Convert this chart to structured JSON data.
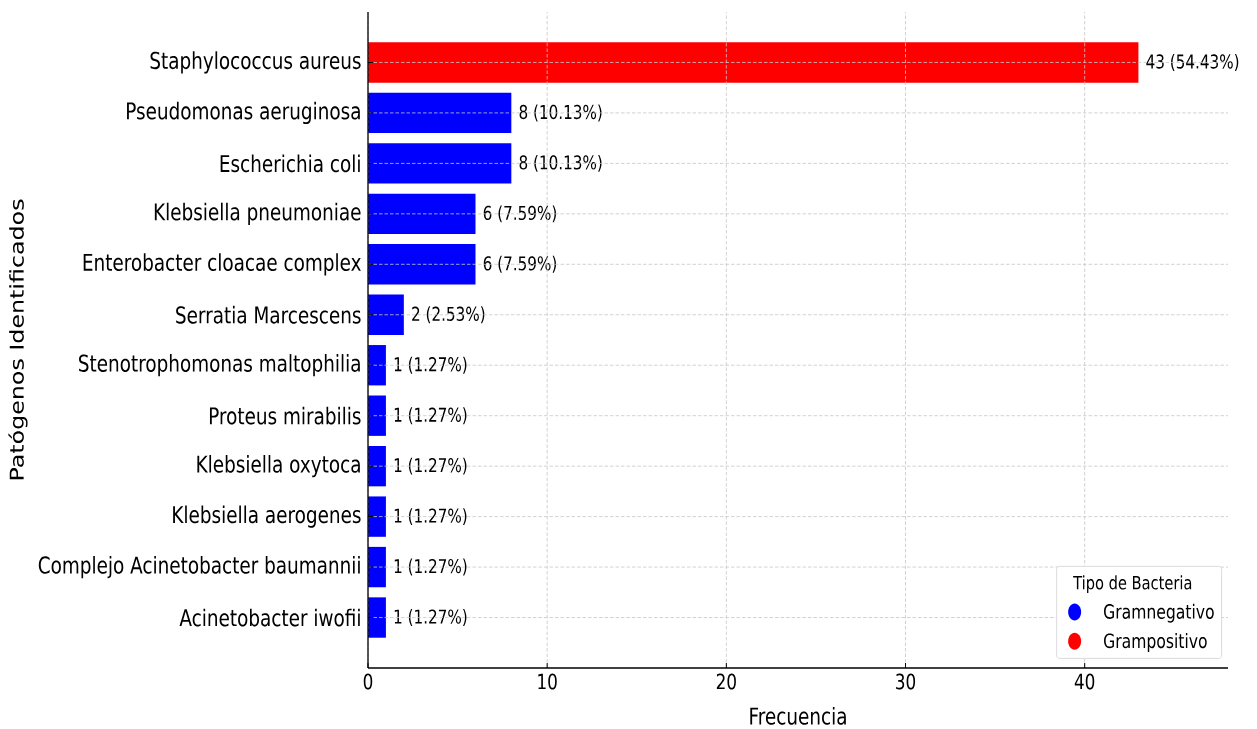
{
  "chart_data": {
    "type": "bar",
    "orientation": "horizontal",
    "xlabel": "Frecuencia",
    "ylabel": "Patógenos Identificados",
    "legend_title": "Tipo de Bacteria",
    "categories": [
      "Staphylococcus aureus",
      "Pseudomonas aeruginosa",
      "Escherichia coli",
      "Klebsiella pneumoniae",
      "Enterobacter cloacae complex",
      "Serratia Marcescens",
      "Stenotrophomonas maltophilia",
      "Proteus mirabilis",
      "Klebsiella oxytoca",
      "Klebsiella aerogenes",
      "Complejo Acinetobacter baumannii",
      "Acinetobacter iwofii"
    ],
    "series": [
      {
        "name": "Gramnegativo",
        "color": "#0000ff",
        "values": [
          null,
          8,
          8,
          6,
          6,
          2,
          1,
          1,
          1,
          1,
          1,
          1
        ],
        "value_labels": [
          null,
          "8 (10.13%)",
          "8 (10.13%)",
          "6 (7.59%)",
          "6 (7.59%)",
          "2 (2.53%)",
          "1 (1.27%)",
          "1 (1.27%)",
          "1 (1.27%)",
          "1 (1.27%)",
          "1 (1.27%)",
          "1 (1.27%)"
        ]
      },
      {
        "name": "Grampositivo",
        "color": "#ff0000",
        "values": [
          43,
          null,
          null,
          null,
          null,
          null,
          null,
          null,
          null,
          null,
          null,
          null
        ],
        "value_labels": [
          "43 (54.43%)",
          null,
          null,
          null,
          null,
          null,
          null,
          null,
          null,
          null,
          null,
          null
        ]
      }
    ],
    "xlim": [
      0,
      48
    ],
    "xticks": [
      0,
      10,
      20,
      30,
      40
    ],
    "grid": true,
    "legend": "bottom right"
  }
}
